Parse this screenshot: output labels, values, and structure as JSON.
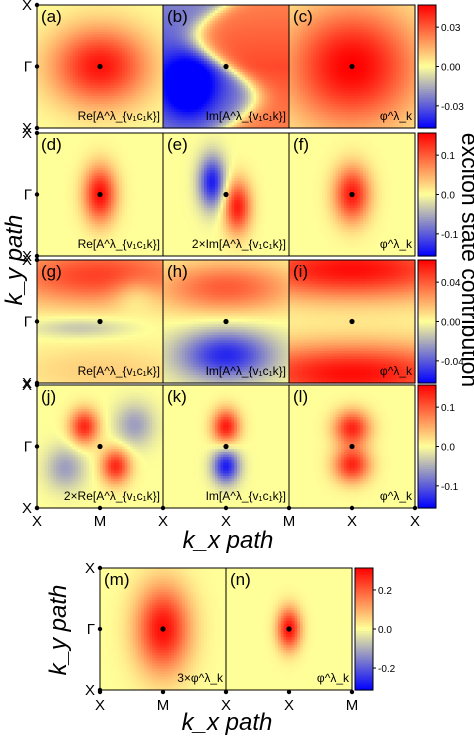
{
  "figure": {
    "left_ylabel": "k_y path",
    "right_label": "exciton state  contribution",
    "xlabel": "k_x path",
    "bottom_ylabel": "k_y path",
    "bottom_xlabel": "k_x path"
  },
  "chart_data": {
    "type": "heatmap",
    "x_ticks": [
      "X",
      "M",
      "X"
    ],
    "y_ticks": [
      "X",
      "Γ",
      "X"
    ],
    "colormap": [
      "#0000ff",
      "#ffff99",
      "#ff0000"
    ],
    "rows": [
      {
        "colorbar_ticks": [
          "0.03",
          "0.00",
          "-0.03"
        ],
        "vmax": 0.03,
        "panels": [
          {
            "tag": "(a)",
            "label": "Re[A^λ_{v₁c₁k}]",
            "pattern": "gauss",
            "amp": 0.92,
            "sx": 0.55,
            "sy": 0.45
          },
          {
            "tag": "(b)",
            "label": "Im[A^λ_{v₁c₁k}]",
            "pattern": "wave",
            "amp": 0.8
          },
          {
            "tag": "(c)",
            "label": "φ^λ_k",
            "pattern": "broad",
            "amp": 1.0
          }
        ]
      },
      {
        "colorbar_ticks": [
          "0.1",
          "0.0",
          "-0.1"
        ],
        "vmax": 0.1,
        "panels": [
          {
            "tag": "(d)",
            "label": "Re[A^λ_{v₁c₁k}]",
            "pattern": "gauss",
            "amp": 0.95,
            "sx": 0.18,
            "sy": 0.32
          },
          {
            "tag": "(e)",
            "label": "2×Im[A^λ_{v₁c₁k}]",
            "pattern": "dipole-x",
            "amp": 0.9
          },
          {
            "tag": "(f)",
            "label": "φ^λ_k",
            "pattern": "gauss",
            "amp": 0.9,
            "sx": 0.2,
            "sy": 0.32
          }
        ]
      },
      {
        "colorbar_ticks": [
          "0.04",
          "0.00",
          "-0.04"
        ],
        "vmax": 0.04,
        "panels": [
          {
            "tag": "(g)",
            "label": "Re[A^λ_{v₁c₁k}]",
            "pattern": "wavy-top",
            "amp": 0.75
          },
          {
            "tag": "(h)",
            "label": "Im[A^λ_{v₁c₁k}]",
            "pattern": "dipole-y",
            "amp": 0.85
          },
          {
            "tag": "(i)",
            "label": "φ^λ_k",
            "pattern": "stripes",
            "amp": 0.95
          }
        ]
      },
      {
        "colorbar_ticks": [
          "0.1",
          "0.0",
          "-0.1"
        ],
        "vmax": 0.1,
        "panels": [
          {
            "tag": "(j)",
            "label": "2×Re[A^λ_{v₁c₁k}]",
            "pattern": "quad",
            "amp": 0.85
          },
          {
            "tag": "(k)",
            "label": "Im[A^λ_{v₁c₁k}]",
            "pattern": "dipole-y-small",
            "amp": 0.9
          },
          {
            "tag": "(l)",
            "label": "φ^λ_k",
            "pattern": "double",
            "amp": 0.85
          }
        ]
      }
    ],
    "bottom": {
      "colorbar_ticks": [
        "0.2",
        "0.0",
        "-0.2"
      ],
      "vmax": 0.2,
      "panels": [
        {
          "tag": "(m)",
          "label": "3×φ^λ_k",
          "pattern": "gauss",
          "amp": 0.95,
          "sx": 0.3,
          "sy": 0.5
        },
        {
          "tag": "(n)",
          "label": "φ^λ_k",
          "pattern": "gauss",
          "amp": 0.95,
          "sx": 0.13,
          "sy": 0.24
        }
      ]
    }
  }
}
